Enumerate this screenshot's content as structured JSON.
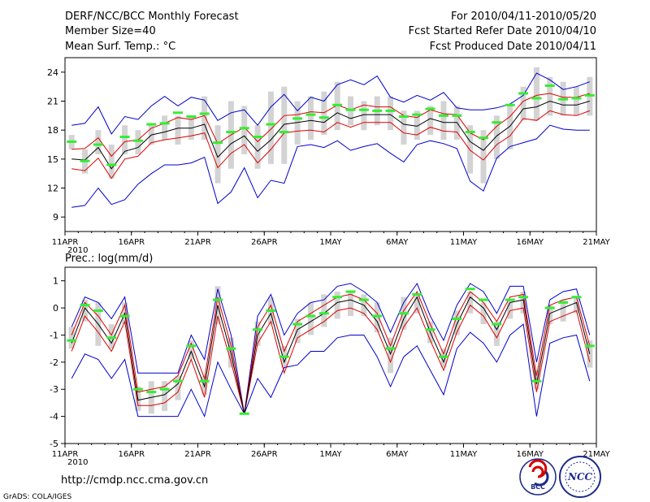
{
  "header": {
    "title": "DERF/NCC/BCC Monthly Forecast",
    "member_size": "Member Size=40",
    "variable": "Mean Surf. Temp.: °C",
    "period": "For 2010/04/11-2010/05/20",
    "refer_date": "Fcst Started Refer Date 2010/04/10",
    "produced_date": "Fcst Produced Date 2010/04/11"
  },
  "footer": {
    "url": "http://cmdp.ncc.cma.gov.cn",
    "grads": "GrADS: COLA/IGES",
    "logo_bcc": "BCC",
    "logo_ncc": "NCC"
  },
  "colors": {
    "ensemble_mean": "#000000",
    "inner_envelope": "#dd0000",
    "outer_envelope": "#0000cc",
    "member_box": "#d3d3d3",
    "marker": "#33ee33"
  },
  "chart_data": [
    {
      "type": "line",
      "title": "Mean Surf. Temp.: °C",
      "x": [
        "11APR",
        "12APR",
        "13APR",
        "14APR",
        "15APR",
        "16APR",
        "17APR",
        "18APR",
        "19APR",
        "20APR",
        "21APR",
        "22APR",
        "23APR",
        "24APR",
        "25APR",
        "26APR",
        "27APR",
        "28APR",
        "29APR",
        "30APR",
        "1MAY",
        "2MAY",
        "3MAY",
        "4MAY",
        "5MAY",
        "6MAY",
        "7MAY",
        "8MAY",
        "9MAY",
        "10MAY",
        "11MAY",
        "12MAY",
        "13MAY",
        "14MAY",
        "15MAY",
        "16MAY",
        "17MAY",
        "18MAY",
        "19MAY",
        "20MAY"
      ],
      "xtick_labels": [
        "11APR",
        "16APR",
        "21APR",
        "26APR",
        "1MAY",
        "6MAY",
        "11MAY",
        "16MAY",
        "21MAY"
      ],
      "xtick_year": "2010",
      "ylim": [
        7.5,
        25.5
      ],
      "yticks": [
        9,
        12,
        15,
        18,
        21,
        24
      ],
      "series": [
        {
          "name": "ensemble mean",
          "values": [
            15.0,
            14.9,
            16.2,
            14.0,
            15.8,
            16.2,
            17.5,
            17.8,
            18.2,
            18.2,
            18.6,
            15.2,
            16.6,
            17.4,
            15.8,
            17.0,
            18.6,
            18.8,
            19.0,
            18.8,
            19.8,
            19.2,
            19.6,
            19.6,
            19.6,
            18.6,
            18.4,
            19.2,
            18.8,
            18.8,
            16.8,
            15.9,
            17.4,
            18.4,
            20.2,
            20.4,
            21.0,
            20.6,
            20.6,
            21.0
          ]
        },
        {
          "name": "upper inner",
          "values": [
            16.0,
            16.1,
            17.2,
            15.3,
            16.8,
            17.0,
            18.2,
            18.7,
            19.3,
            19.1,
            19.5,
            16.6,
            17.5,
            18.3,
            16.8,
            18.1,
            19.5,
            19.6,
            19.9,
            19.8,
            20.6,
            20.1,
            20.6,
            20.4,
            20.4,
            19.5,
            19.3,
            20.1,
            19.7,
            19.6,
            17.7,
            17.0,
            18.4,
            19.4,
            21.0,
            21.6,
            21.8,
            21.4,
            21.4,
            21.8
          ]
        },
        {
          "name": "lower inner",
          "values": [
            14.0,
            13.8,
            15.1,
            13.0,
            15.0,
            15.3,
            16.7,
            17.0,
            17.2,
            17.4,
            17.7,
            14.1,
            15.6,
            16.5,
            14.6,
            16.0,
            17.7,
            17.9,
            18.0,
            17.8,
            18.8,
            18.3,
            18.8,
            18.8,
            18.8,
            17.7,
            17.5,
            18.3,
            17.9,
            17.8,
            15.9,
            14.9,
            16.5,
            17.4,
            19.2,
            19.0,
            20.0,
            19.6,
            19.5,
            20.0
          ]
        },
        {
          "name": "upper outer",
          "values": [
            18.5,
            18.7,
            20.4,
            17.6,
            19.4,
            19.1,
            20.5,
            21.5,
            20.5,
            21.4,
            21.1,
            19.0,
            19.8,
            20.1,
            18.5,
            20.4,
            21.7,
            20.0,
            21.4,
            21.0,
            22.7,
            23.2,
            22.7,
            23.6,
            21.4,
            20.9,
            21.6,
            21.1,
            21.9,
            20.3,
            20.1,
            20.1,
            20.3,
            20.7,
            21.6,
            23.9,
            23.2,
            22.2,
            22.5,
            23.0
          ]
        },
        {
          "name": "lower outer",
          "values": [
            10.0,
            10.2,
            12.0,
            10.3,
            10.8,
            12.4,
            13.5,
            14.4,
            14.4,
            14.6,
            15.2,
            10.4,
            11.6,
            14.1,
            11.0,
            12.8,
            12.5,
            16.3,
            16.5,
            16.2,
            16.9,
            15.9,
            16.3,
            16.6,
            15.6,
            14.7,
            16.5,
            16.9,
            16.6,
            16.1,
            12.7,
            11.7,
            15.1,
            16.3,
            16.7,
            17.1,
            18.5,
            18.1,
            18.0,
            18.0
          ]
        },
        {
          "name": "member spread box",
          "values": [
            [
              16.0,
              17.5
            ],
            [
              13.5,
              16.0
            ],
            [
              15.5,
              18.0
            ],
            [
              13.0,
              16.5
            ],
            [
              15.5,
              18.5
            ],
            [
              15.5,
              18.0
            ],
            [
              16.5,
              18.5
            ],
            [
              17.0,
              19.5
            ],
            [
              16.5,
              19.5
            ],
            [
              17.0,
              19.5
            ],
            [
              17.0,
              21.5
            ],
            [
              12.5,
              18.5
            ],
            [
              14.0,
              21.0
            ],
            [
              15.5,
              20.5
            ],
            [
              14.0,
              18.5
            ],
            [
              14.5,
              22.0
            ],
            [
              14.5,
              22.5
            ],
            [
              16.5,
              21.0
            ],
            [
              17.0,
              21.5
            ],
            [
              17.5,
              22.0
            ],
            [
              18.0,
              23.0
            ],
            [
              18.5,
              21.5
            ],
            [
              18.0,
              21.0
            ],
            [
              18.5,
              21.5
            ],
            [
              18.0,
              21.5
            ],
            [
              16.5,
              20.0
            ],
            [
              17.0,
              20.0
            ],
            [
              17.5,
              20.5
            ],
            [
              17.0,
              21.0
            ],
            [
              17.0,
              20.5
            ],
            [
              13.5,
              18.5
            ],
            [
              12.5,
              18.0
            ],
            [
              15.0,
              19.5
            ],
            [
              16.0,
              20.5
            ],
            [
              19.0,
              22.5
            ],
            [
              19.0,
              24.5
            ],
            [
              19.5,
              23.5
            ],
            [
              19.5,
              23.0
            ],
            [
              19.5,
              22.5
            ],
            [
              19.5,
              23.5
            ]
          ]
        },
        {
          "name": "marker",
          "values": [
            16.8,
            14.8,
            16.5,
            14.4,
            17.3,
            16.9,
            18.6,
            18.7,
            19.8,
            19.4,
            19.7,
            16.7,
            17.8,
            18.2,
            17.3,
            18.6,
            17.8,
            19.2,
            19.6,
            19.3,
            20.6,
            20.1,
            20.1,
            20.0,
            20.0,
            19.4,
            19.6,
            20.2,
            19.5,
            19.5,
            17.8,
            17.2,
            18.8,
            20.6,
            21.8,
            21.3,
            22.6,
            21.2,
            21.3,
            21.6
          ]
        }
      ]
    },
    {
      "type": "line",
      "title": "Prec.: log(mm/d)",
      "x": [
        "11APR",
        "12APR",
        "13APR",
        "14APR",
        "15APR",
        "16APR",
        "17APR",
        "18APR",
        "19APR",
        "20APR",
        "21APR",
        "22APR",
        "23APR",
        "24APR",
        "25APR",
        "26APR",
        "27APR",
        "28APR",
        "29APR",
        "30APR",
        "1MAY",
        "2MAY",
        "3MAY",
        "4MAY",
        "5MAY",
        "6MAY",
        "7MAY",
        "8MAY",
        "9MAY",
        "10MAY",
        "11MAY",
        "12MAY",
        "13MAY",
        "14MAY",
        "15MAY",
        "16MAY",
        "17MAY",
        "18MAY",
        "19MAY",
        "20MAY"
      ],
      "xtick_labels": [
        "11APR",
        "16APR",
        "21APR",
        "26APR",
        "1MAY",
        "6MAY",
        "11MAY",
        "16MAY",
        "21MAY"
      ],
      "xtick_year": "2010",
      "ylim": [
        -5,
        1.5
      ],
      "yticks": [
        -5,
        -4,
        -3,
        -2,
        -1,
        0,
        1
      ],
      "series": [
        {
          "name": "ensemble mean",
          "values": [
            -1.3,
            0.0,
            -0.6,
            -1.3,
            -0.2,
            -3.4,
            -3.3,
            -3.2,
            -2.8,
            -1.6,
            -2.9,
            0.1,
            -1.7,
            -3.9,
            -1.0,
            -0.2,
            -2.0,
            -0.8,
            -0.5,
            -0.2,
            0.2,
            0.3,
            0.1,
            -0.5,
            -1.7,
            -0.4,
            0.4,
            -0.9,
            -2.0,
            -0.6,
            0.4,
            0.0,
            -0.8,
            0.2,
            0.3,
            -2.8,
            -0.2,
            0.0,
            0.2,
            -1.7
          ]
        },
        {
          "name": "upper inner",
          "values": [
            -1.0,
            0.2,
            -0.3,
            -1.0,
            0.1,
            -3.1,
            -3.0,
            -2.9,
            -2.5,
            -1.3,
            -2.6,
            0.4,
            -1.4,
            -3.9,
            -0.7,
            0.1,
            -1.6,
            -0.5,
            -0.2,
            0.1,
            0.4,
            0.5,
            0.3,
            -0.2,
            -1.4,
            -0.1,
            0.6,
            -0.6,
            -1.7,
            -0.3,
            0.6,
            0.2,
            -0.5,
            0.4,
            0.5,
            -2.5,
            0.1,
            0.3,
            0.4,
            -1.4
          ]
        },
        {
          "name": "lower inner",
          "values": [
            -1.6,
            -0.3,
            -0.9,
            -1.6,
            -0.5,
            -3.6,
            -3.6,
            -3.5,
            -3.1,
            -1.9,
            -3.3,
            -0.3,
            -2.0,
            -3.9,
            -1.3,
            -0.5,
            -2.4,
            -1.1,
            -0.8,
            -0.5,
            -0.1,
            0.0,
            -0.2,
            -0.8,
            -2.0,
            -0.7,
            0.0,
            -1.2,
            -2.3,
            -0.9,
            0.1,
            -0.3,
            -1.1,
            -0.1,
            0.0,
            -3.1,
            -0.5,
            -0.3,
            -0.1,
            -2.0
          ]
        },
        {
          "name": "upper outer",
          "values": [
            -0.7,
            0.4,
            0.2,
            -0.4,
            0.4,
            -2.4,
            -2.4,
            -2.4,
            -2.4,
            -1.0,
            -1.9,
            0.7,
            -1.0,
            -3.9,
            -0.3,
            0.5,
            -1.0,
            -0.2,
            0.2,
            0.3,
            0.8,
            0.9,
            0.6,
            0.2,
            -0.9,
            0.2,
            0.9,
            -0.3,
            -1.2,
            0.1,
            0.9,
            0.6,
            -0.2,
            0.8,
            0.8,
            -2.0,
            0.3,
            0.6,
            0.7,
            -1.0
          ]
        },
        {
          "name": "lower outer",
          "values": [
            -2.6,
            -1.7,
            -1.9,
            -2.6,
            -1.9,
            -4.0,
            -4.0,
            -4.0,
            -4.0,
            -3.0,
            -4.0,
            -2.0,
            -3.0,
            -3.9,
            -2.6,
            -3.3,
            -2.2,
            -2.1,
            -1.6,
            -1.6,
            -1.1,
            -1.0,
            -1.0,
            -1.8,
            -2.9,
            -1.8,
            -1.4,
            -2.3,
            -3.2,
            -1.5,
            -0.9,
            -1.3,
            -2.0,
            -1.0,
            -0.6,
            -4.0,
            -1.3,
            -1.1,
            -1.0,
            -2.7
          ]
        },
        {
          "name": "member spread box",
          "values": [
            [
              -1.5,
              -0.7
            ],
            [
              -0.5,
              0.3
            ],
            [
              -1.4,
              0.2
            ],
            [
              -1.5,
              -0.6
            ],
            [
              -0.6,
              0.2
            ],
            [
              -3.8,
              -2.9
            ],
            [
              -3.9,
              -2.7
            ],
            [
              -3.8,
              -2.7
            ],
            [
              -3.4,
              -2.5
            ],
            [
              -1.9,
              -1.2
            ],
            [
              -3.2,
              -2.5
            ],
            [
              -0.6,
              0.8
            ],
            [
              -2.2,
              -1.1
            ],
            [
              -3.9,
              -3.9
            ],
            [
              -1.4,
              -0.5
            ],
            [
              -0.6,
              0.4
            ],
            [
              -2.2,
              -1.4
            ],
            [
              -1.3,
              -0.4
            ],
            [
              -1.0,
              0.2
            ],
            [
              -0.7,
              0.5
            ],
            [
              -0.4,
              0.6
            ],
            [
              -0.3,
              0.6
            ],
            [
              -0.3,
              0.5
            ],
            [
              -0.9,
              0.2
            ],
            [
              -2.4,
              -1.1
            ],
            [
              -0.8,
              0.4
            ],
            [
              -0.2,
              0.5
            ],
            [
              -1.3,
              -0.5
            ],
            [
              -2.2,
              -1.5
            ],
            [
              -1.0,
              -0.1
            ],
            [
              -0.2,
              0.6
            ],
            [
              -0.6,
              0.2
            ],
            [
              -1.4,
              -0.5
            ],
            [
              -0.4,
              0.3
            ],
            [
              -0.2,
              0.6
            ],
            [
              -3.0,
              -2.3
            ],
            [
              -0.6,
              0.1
            ],
            [
              -0.5,
              0.3
            ],
            [
              -0.2,
              0.4
            ],
            [
              -2.2,
              -1.2
            ]
          ]
        },
        {
          "name": "marker",
          "values": [
            -1.2,
            0.1,
            -0.1,
            -1.1,
            -0.3,
            -3.0,
            -3.1,
            -3.0,
            -2.7,
            -1.4,
            -2.7,
            0.3,
            -1.5,
            -3.9,
            -0.8,
            -0.1,
            -1.8,
            -0.6,
            -0.3,
            -0.2,
            0.4,
            0.6,
            0.3,
            -0.3,
            -1.5,
            -0.2,
            0.5,
            -0.8,
            -1.8,
            -0.4,
            0.7,
            0.3,
            -0.6,
            0.3,
            0.4,
            -2.7,
            0.0,
            0.2,
            0.4,
            -1.4
          ]
        }
      ]
    }
  ]
}
